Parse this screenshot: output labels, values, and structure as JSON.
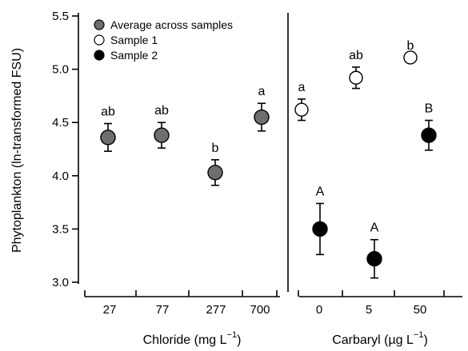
{
  "chart_data": {
    "type": "scatter",
    "ylabel": "Phytoplankton (ln-transformed FSU)",
    "ylim": [
      3.0,
      5.5
    ],
    "yticks": [
      "3.0",
      "3.5",
      "4.0",
      "4.5",
      "5.0",
      "5.5"
    ],
    "yticks_values": [
      3.0,
      3.5,
      4.0,
      4.5,
      5.0,
      5.5
    ],
    "legend": {
      "position": "top-left",
      "entries": [
        {
          "label": "Average across samples",
          "color": "#6e6e6e"
        },
        {
          "label": "Sample 1",
          "color": "#ffffff"
        },
        {
          "label": "Sample 2",
          "color": "#000000"
        }
      ]
    },
    "panels": [
      {
        "xlabel": "Chloride (mg L",
        "xlabel_sup": "−1",
        "xlabel_end": ")",
        "categories": [
          "27",
          "77",
          "277",
          "700"
        ],
        "series": [
          {
            "name": "Average across samples",
            "color": "#6e6e6e",
            "values": [
              4.36,
              4.38,
              4.03,
              4.55
            ],
            "err": [
              0.13,
              0.12,
              0.12,
              0.13
            ],
            "letters": [
              "ab",
              "ab",
              "b",
              "a"
            ]
          }
        ]
      },
      {
        "xlabel": "Carbaryl (µg L",
        "xlabel_sup": "−1",
        "xlabel_end": ")",
        "categories": [
          "0",
          "5",
          "50"
        ],
        "series": [
          {
            "name": "Sample 1",
            "color": "#ffffff",
            "values": [
              4.62,
              4.92,
              5.11
            ],
            "err": [
              0.1,
              0.1,
              0.0
            ],
            "letters": [
              "a",
              "ab",
              "b"
            ]
          },
          {
            "name": "Sample 2",
            "color": "#000000",
            "values": [
              3.5,
              3.22,
              4.38
            ],
            "err": [
              0.24,
              0.18,
              0.14
            ],
            "letters": [
              "A",
              "A",
              "B"
            ]
          }
        ]
      }
    ]
  }
}
